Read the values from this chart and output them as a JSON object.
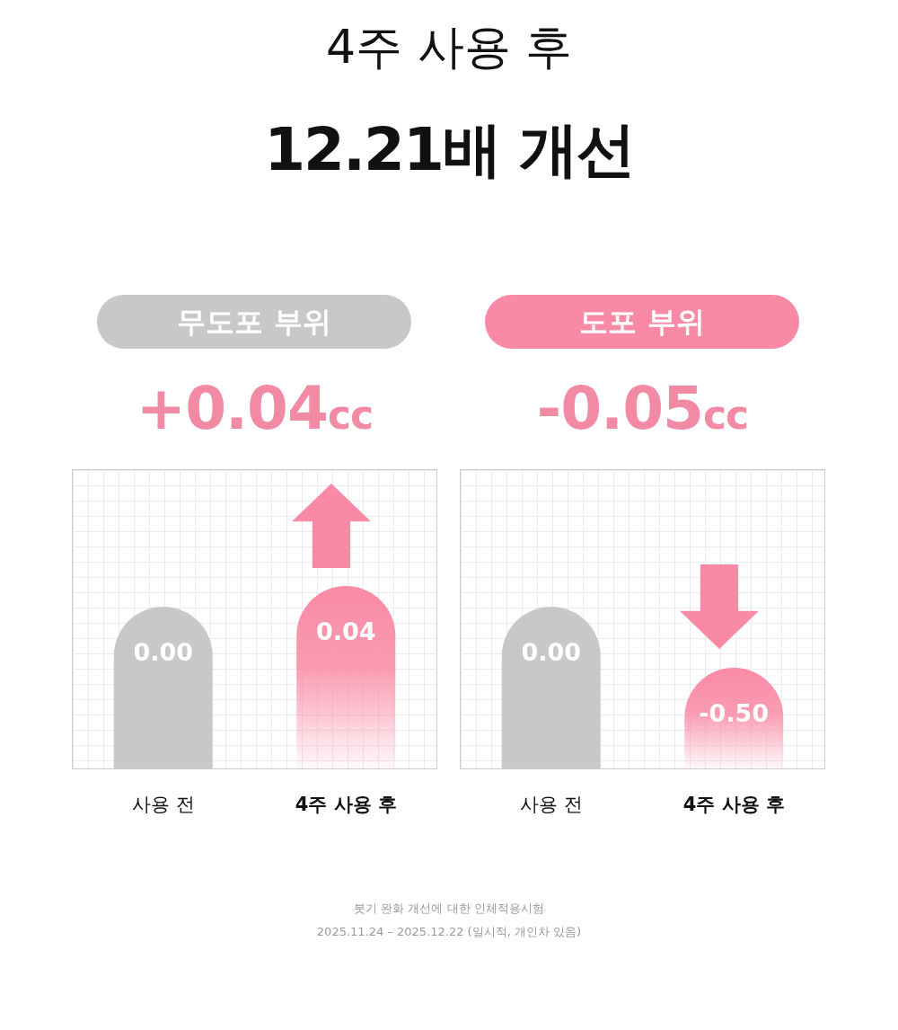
{
  "chart_data": [
    {
      "type": "other",
      "title": "4주 사용 후",
      "subtitle": "12.21배 개선",
      "annotations": [
        "붓기 완화 개선에 대한 인체적용시험",
        "2025.11.24 – 2025.12.22 (일시적, 개인차 있음)"
      ]
    },
    {
      "type": "other",
      "title": "무도포 부위",
      "subtitle": "+0.04cc",
      "categories": [
        "사용 전",
        "4주 사용 후"
      ],
      "values": [
        0,
        0.04
      ],
      "value_labels": [
        "0.00",
        "0.04"
      ],
      "colors": [
        "#c8c8c8",
        "#f98aa5"
      ]
    },
    {
      "type": "other",
      "title": "도포 부위",
      "subtitle": "-0.05cc",
      "categories": [
        "사용 전",
        "4주 사용 후"
      ],
      "values": [
        0,
        -0.5
      ],
      "value_labels": [
        "0.00",
        "-0.50"
      ],
      "colors": [
        "#c8c8c8",
        "#f98aa5"
      ]
    }
  ]
}
